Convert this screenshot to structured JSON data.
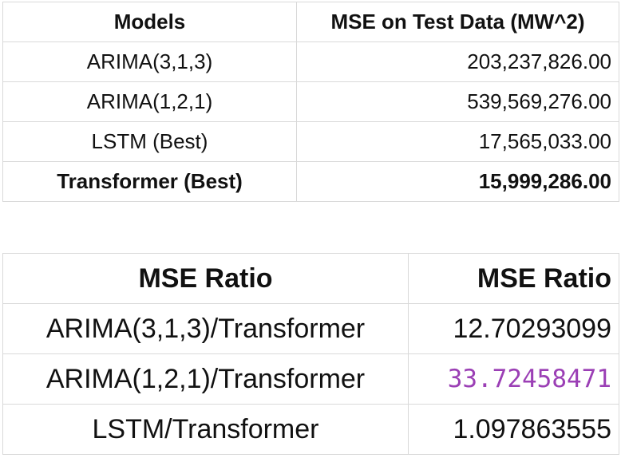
{
  "colors": {
    "highlight_value": "#9b3fb5",
    "grid_line": "#d9d9d9"
  },
  "mse_table": {
    "headers": [
      "Models",
      "MSE on Test Data (MW^2)"
    ],
    "rows": [
      {
        "model": "ARIMA(3,1,3)",
        "mse": "203,237,826.00"
      },
      {
        "model": "ARIMA(1,2,1)",
        "mse": "539,569,276.00"
      },
      {
        "model": "LSTM (Best)",
        "mse": "17,565,033.00"
      },
      {
        "model": "Transformer (Best)",
        "mse": "15,999,286.00"
      }
    ]
  },
  "ratio_table": {
    "headers": [
      "MSE Ratio",
      "MSE Ratio"
    ],
    "rows": [
      {
        "pair": "ARIMA(3,1,3)/Transformer",
        "ratio": "12.70293099"
      },
      {
        "pair": "ARIMA(1,2,1)/Transformer",
        "ratio": "33.72458471"
      },
      {
        "pair": "LSTM/Transformer",
        "ratio": "1.097863555"
      }
    ]
  }
}
